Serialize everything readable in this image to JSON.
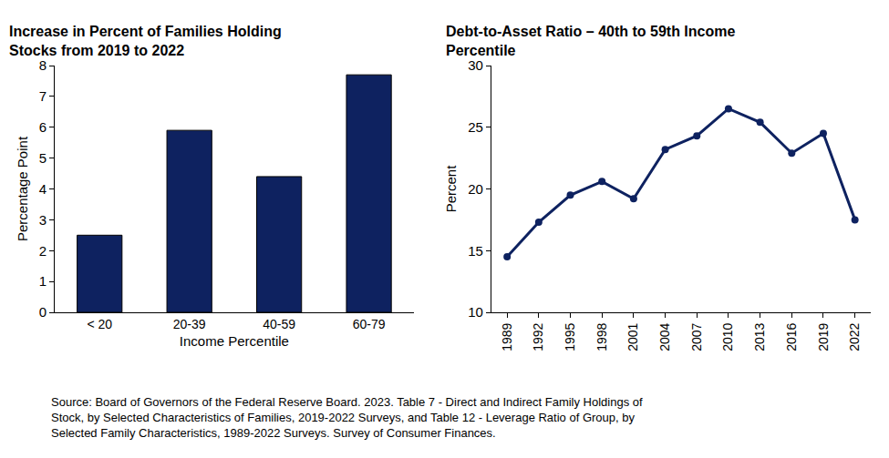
{
  "chart_data": [
    {
      "type": "bar",
      "title": "Increase in Percent of Families Holding\nStocks from 2019 to 2022",
      "x_label": "Income Percentile",
      "y_label": "Percentage Point",
      "categories": [
        "< 20",
        "20-39",
        "40-59",
        "60-79"
      ],
      "values": [
        2.5,
        5.9,
        4.4,
        7.7
      ],
      "color": "#0e2260",
      "ylim": [
        0,
        8
      ],
      "yticks": [
        0,
        1,
        2,
        3,
        4,
        5,
        6,
        7,
        8
      ],
      "grid": false
    },
    {
      "type": "line",
      "title": "Debt-to-Asset Ratio – 40th to 59th Income\nPercentile",
      "y_label": "Percent",
      "categories": [
        "1989",
        "1992",
        "1995",
        "1998",
        "2001",
        "2004",
        "2007",
        "2010",
        "2013",
        "2016",
        "2019",
        "2022"
      ],
      "values": [
        14.5,
        17.3,
        19.5,
        20.6,
        19.2,
        23.2,
        24.3,
        26.5,
        25.4,
        22.9,
        24.5,
        17.5
      ],
      "color": "#0e2260",
      "marker": "circle",
      "ylim": [
        10,
        30
      ],
      "yticks": [
        10,
        15,
        20,
        25,
        30
      ],
      "grid": false
    }
  ],
  "source": "Source: Board of Governors of the Federal Reserve Board. 2023. Table 7 - Direct and Indirect Family Holdings of\nStock, by Selected Characteristics of Families, 2019-2022 Surveys, and Table 12 - Leverage Ratio of Group, by\nSelected Family Characteristics, 1989-2022 Surveys. Survey of Consumer Finances."
}
